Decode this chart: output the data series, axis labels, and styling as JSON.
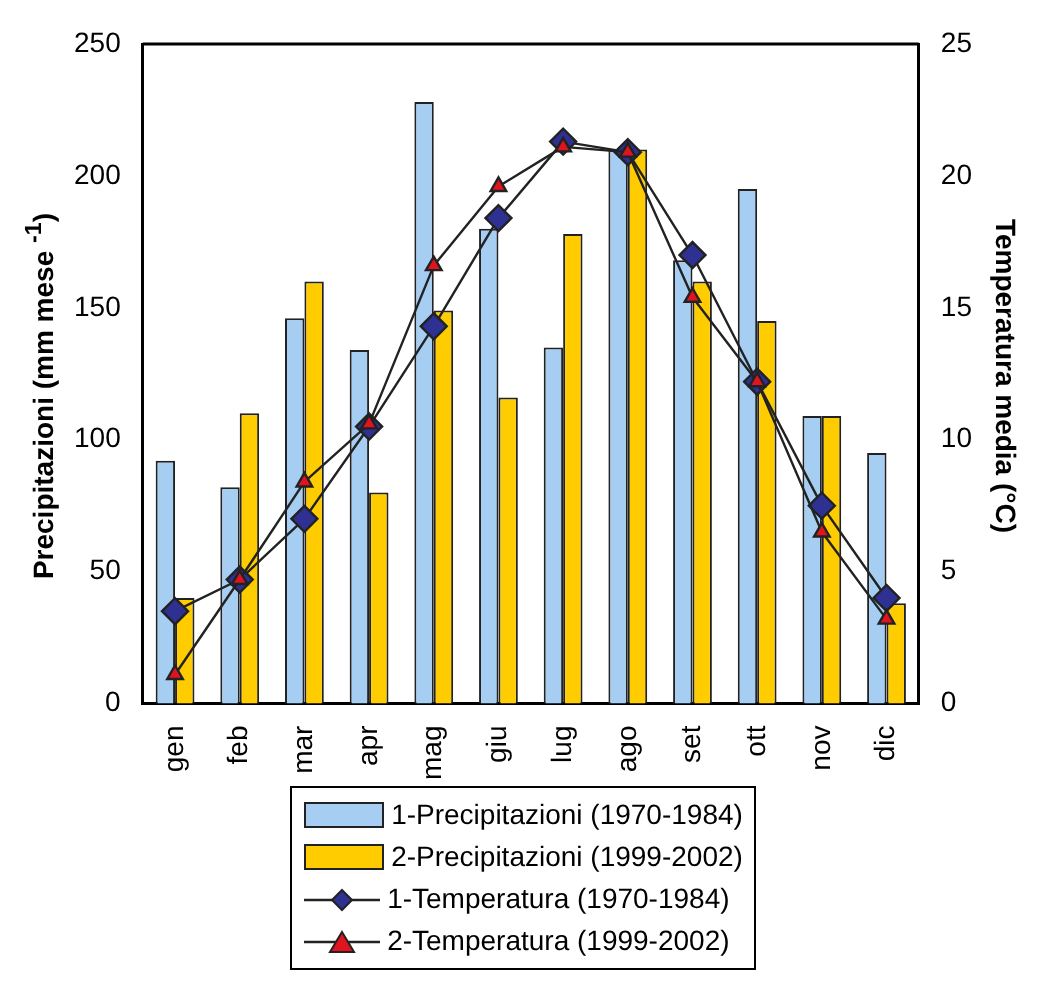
{
  "chart_data": {
    "type": "bar",
    "categories": [
      "gen",
      "feb",
      "mar",
      "apr",
      "mag",
      "giu",
      "lug",
      "ago",
      "set",
      "ott",
      "nov",
      "dic"
    ],
    "ylabel": "Precipitazioni (mm mese $^{-1}$)",
    "y2label": "Temperatura media (°C)",
    "ylim": [
      0,
      250
    ],
    "yticks": [
      0,
      50,
      100,
      150,
      200,
      250
    ],
    "y2lim": [
      0,
      25
    ],
    "y2ticks": [
      0,
      5,
      10,
      15,
      20,
      25
    ],
    "grid": false,
    "legend": "bottom",
    "series": [
      {
        "name": "1-Precipitazioni (1970-1984)",
        "color": "#a6cdf2",
        "values": [
          92,
          82,
          146,
          134,
          228,
          180,
          135,
          210,
          168,
          195,
          109,
          95
        ]
      },
      {
        "name": "2-Precipitazioni (1999-2002)",
        "color": "#ffcc00",
        "values": [
          40,
          110,
          160,
          80,
          149,
          116,
          178,
          210,
          160,
          145,
          109,
          38
        ]
      },
      {
        "name": "1-Temperatura (1970-1984)",
        "type": "line",
        "axis": "y2",
        "color": "#2e3192",
        "marker": "diamond",
        "values": [
          3.5,
          4.7,
          7,
          10.5,
          14.3,
          18.4,
          21.3,
          20.9,
          17,
          12.2,
          7.5,
          4
        ]
      },
      {
        "name": "2-Temperatura (1999-2002)",
        "type": "line",
        "axis": "y2",
        "color": "#e0141e",
        "marker": "triangle",
        "values": [
          1.1,
          4.7,
          8.4,
          10.6,
          16.6,
          19.6,
          21.1,
          20.9,
          15.4,
          12.2,
          6.5,
          3.2
        ]
      }
    ]
  }
}
